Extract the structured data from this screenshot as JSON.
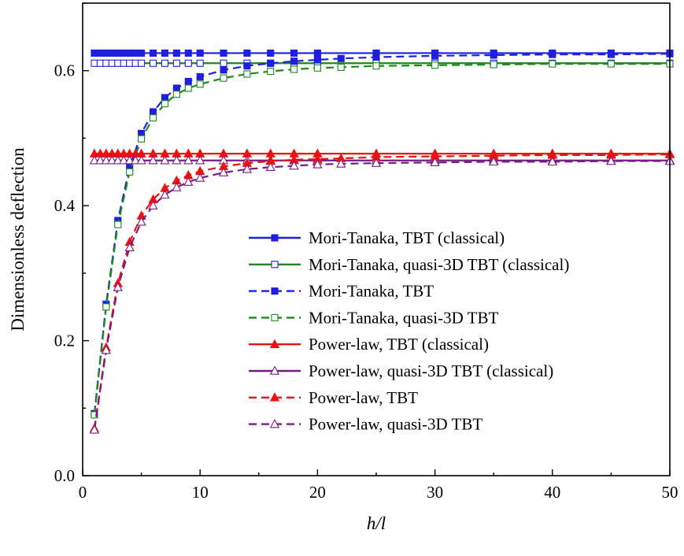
{
  "chart_data": {
    "type": "line",
    "xlabel": "h/l",
    "ylabel": "Dimensionless deflection",
    "xlim": [
      0,
      50
    ],
    "ylim": [
      0,
      0.7
    ],
    "x_ticks": [
      "0",
      "10",
      "20",
      "30",
      "40",
      "50"
    ],
    "y_ticks": [
      "0.0",
      "0.2",
      "0.4",
      "0.6"
    ],
    "grid": false,
    "legend_position": "right",
    "series": [
      {
        "name": "Mori-Tanaka, TBT (classical)",
        "color": "#1f1fe0",
        "dash": false,
        "marker": "square",
        "filled": true,
        "x": [
          1,
          1.5,
          2,
          2.5,
          3,
          3.5,
          4,
          4.5,
          5,
          6,
          7,
          8,
          9,
          10,
          12,
          14,
          16,
          18,
          20,
          25,
          30,
          35,
          40,
          45,
          50
        ],
        "y": [
          0.626,
          0.626,
          0.626,
          0.626,
          0.626,
          0.626,
          0.626,
          0.626,
          0.626,
          0.626,
          0.626,
          0.626,
          0.626,
          0.626,
          0.626,
          0.626,
          0.626,
          0.626,
          0.626,
          0.626,
          0.626,
          0.626,
          0.626,
          0.626,
          0.626
        ]
      },
      {
        "name": "Mori-Tanaka, quasi-3D TBT (classical)",
        "color": "#1a8a1a",
        "dash": false,
        "marker": "square",
        "filled": false,
        "edgeColor": "#1f1fe0",
        "x": [
          1,
          1.5,
          2,
          2.5,
          3,
          3.5,
          4,
          4.5,
          5,
          6,
          7,
          8,
          9,
          10,
          12,
          14,
          16,
          18,
          20,
          25,
          30,
          35,
          40,
          45,
          50
        ],
        "y": [
          0.611,
          0.611,
          0.611,
          0.611,
          0.611,
          0.611,
          0.611,
          0.611,
          0.611,
          0.611,
          0.611,
          0.611,
          0.611,
          0.611,
          0.611,
          0.611,
          0.611,
          0.611,
          0.611,
          0.611,
          0.611,
          0.611,
          0.611,
          0.611,
          0.611
        ]
      },
      {
        "name": "Mori-Tanaka, TBT",
        "color": "#1f1fe0",
        "dash": true,
        "marker": "square",
        "filled": true,
        "x": [
          1,
          2,
          3,
          4,
          5,
          6,
          7,
          8,
          9,
          10,
          12,
          14,
          16,
          18,
          20,
          22,
          25,
          30,
          35,
          40,
          45,
          50
        ],
        "y": [
          0.092,
          0.254,
          0.378,
          0.457,
          0.507,
          0.539,
          0.56,
          0.574,
          0.584,
          0.591,
          0.601,
          0.607,
          0.611,
          0.614,
          0.616,
          0.618,
          0.62,
          0.622,
          0.623,
          0.624,
          0.624,
          0.625
        ]
      },
      {
        "name": "Mori-Tanaka, quasi-3D TBT",
        "color": "#1a8a1a",
        "dash": true,
        "marker": "square",
        "filled": false,
        "edgeColor": "#1a8a1a",
        "x": [
          1,
          2,
          3,
          4,
          5,
          6,
          7,
          8,
          9,
          10,
          12,
          14,
          16,
          18,
          20,
          22,
          25,
          30,
          35,
          40,
          45,
          50
        ],
        "y": [
          0.09,
          0.25,
          0.372,
          0.45,
          0.499,
          0.53,
          0.551,
          0.565,
          0.574,
          0.58,
          0.589,
          0.595,
          0.599,
          0.602,
          0.604,
          0.605,
          0.607,
          0.608,
          0.609,
          0.61,
          0.61,
          0.61
        ]
      },
      {
        "name": "Power-law, TBT (classical)",
        "color": "#ee1111",
        "dash": false,
        "marker": "triangle",
        "filled": true,
        "x": [
          1,
          1.5,
          2,
          2.5,
          3,
          3.5,
          4,
          4.5,
          5,
          6,
          7,
          8,
          9,
          10,
          12,
          14,
          16,
          18,
          20,
          25,
          30,
          35,
          40,
          45,
          50
        ],
        "y": [
          0.477,
          0.477,
          0.477,
          0.477,
          0.477,
          0.477,
          0.477,
          0.477,
          0.477,
          0.477,
          0.477,
          0.477,
          0.477,
          0.477,
          0.477,
          0.477,
          0.477,
          0.477,
          0.477,
          0.477,
          0.477,
          0.477,
          0.477,
          0.477,
          0.477
        ]
      },
      {
        "name": "Power-law, quasi-3D TBT (classical)",
        "color": "#7a1a8a",
        "dash": false,
        "marker": "triangle",
        "filled": false,
        "edgeColor": "#7a1a8a",
        "x": [
          1,
          1.5,
          2,
          2.5,
          3,
          3.5,
          4,
          4.5,
          5,
          6,
          7,
          8,
          9,
          10,
          12,
          14,
          16,
          18,
          20,
          25,
          30,
          35,
          40,
          45,
          50
        ],
        "y": [
          0.467,
          0.467,
          0.467,
          0.467,
          0.467,
          0.467,
          0.467,
          0.467,
          0.467,
          0.467,
          0.467,
          0.467,
          0.467,
          0.467,
          0.467,
          0.467,
          0.467,
          0.467,
          0.467,
          0.467,
          0.467,
          0.467,
          0.467,
          0.467,
          0.467
        ]
      },
      {
        "name": "Power-law, TBT",
        "color": "#ee1111",
        "dash": true,
        "marker": "triangle",
        "filled": true,
        "x": [
          1,
          2,
          3,
          4,
          5,
          6,
          7,
          8,
          9,
          10,
          12,
          14,
          16,
          18,
          20,
          22,
          25,
          30,
          35,
          40,
          45,
          50
        ],
        "y": [
          0.07,
          0.19,
          0.285,
          0.346,
          0.385,
          0.409,
          0.426,
          0.437,
          0.445,
          0.451,
          0.458,
          0.463,
          0.466,
          0.468,
          0.469,
          0.47,
          0.472,
          0.473,
          0.474,
          0.475,
          0.475,
          0.476
        ]
      },
      {
        "name": "Power-law, quasi-3D TBT",
        "color": "#7a1a8a",
        "dash": true,
        "marker": "triangle",
        "filled": false,
        "edgeColor": "#7a1a8a",
        "x": [
          1,
          2,
          3,
          4,
          5,
          6,
          7,
          8,
          9,
          10,
          12,
          14,
          16,
          18,
          20,
          22,
          25,
          30,
          35,
          40,
          45,
          50
        ],
        "y": [
          0.068,
          0.186,
          0.279,
          0.338,
          0.376,
          0.4,
          0.416,
          0.427,
          0.435,
          0.441,
          0.449,
          0.454,
          0.457,
          0.459,
          0.461,
          0.462,
          0.463,
          0.464,
          0.465,
          0.465,
          0.466,
          0.466
        ]
      }
    ]
  }
}
